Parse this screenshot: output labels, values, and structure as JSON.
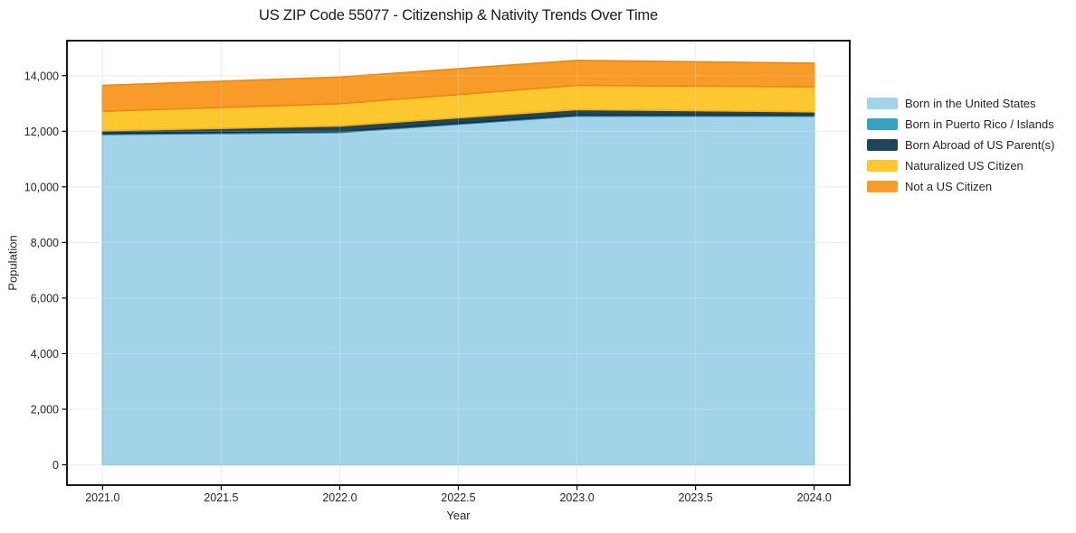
{
  "chart_data": {
    "type": "area",
    "stacked": true,
    "title": "US ZIP Code 55077 - Citizenship & Nativity Trends Over Time",
    "xlabel": "Year",
    "ylabel": "Population",
    "x": [
      2021,
      2022,
      2023,
      2024
    ],
    "series": [
      {
        "name": "Born in the United States",
        "color": "#a3d3e8",
        "edge_color": "#85bdd8",
        "values": [
          11880,
          11955,
          12550,
          12540
        ]
      },
      {
        "name": "Born in Puerto Rico / Islands",
        "color": "#38a2c4",
        "edge_color": "#2b89a8",
        "values": [
          40,
          35,
          30,
          40
        ]
      },
      {
        "name": "Born Abroad of US Parent(s)",
        "color": "#20455a",
        "edge_color": "#16303f",
        "values": [
          100,
          200,
          200,
          120
        ]
      },
      {
        "name": "Naturalized US Citizen",
        "color": "#fdc72f",
        "edge_color": "#eeb117",
        "values": [
          700,
          800,
          870,
          900
        ]
      },
      {
        "name": "Not a US Citizen",
        "color": "#f99b28",
        "edge_color": "#e8890f",
        "values": [
          930,
          960,
          900,
          850
        ]
      }
    ],
    "stack_totals": [
      13650,
      13950,
      14550,
      14450
    ],
    "xticks": {
      "values": [
        2021.0,
        2021.5,
        2022.0,
        2022.5,
        2023.0,
        2023.5,
        2024.0
      ],
      "labels": [
        "2021.0",
        "2021.5",
        "2022.0",
        "2022.5",
        "2023.0",
        "2023.5",
        "2024.0"
      ]
    },
    "yticks": {
      "values": [
        0,
        2000,
        4000,
        6000,
        8000,
        10000,
        12000,
        14000
      ],
      "labels": [
        "0",
        "2,000",
        "4,000",
        "6,000",
        "8,000",
        "10,000",
        "12,000",
        "14,000"
      ]
    },
    "xlim": [
      2020.85,
      2024.15
    ],
    "ylim": [
      -730,
      15260
    ],
    "grid": true,
    "grid_color": "#e9e9e9",
    "frame_color": "#000000",
    "legend_position": "right-outside"
  }
}
